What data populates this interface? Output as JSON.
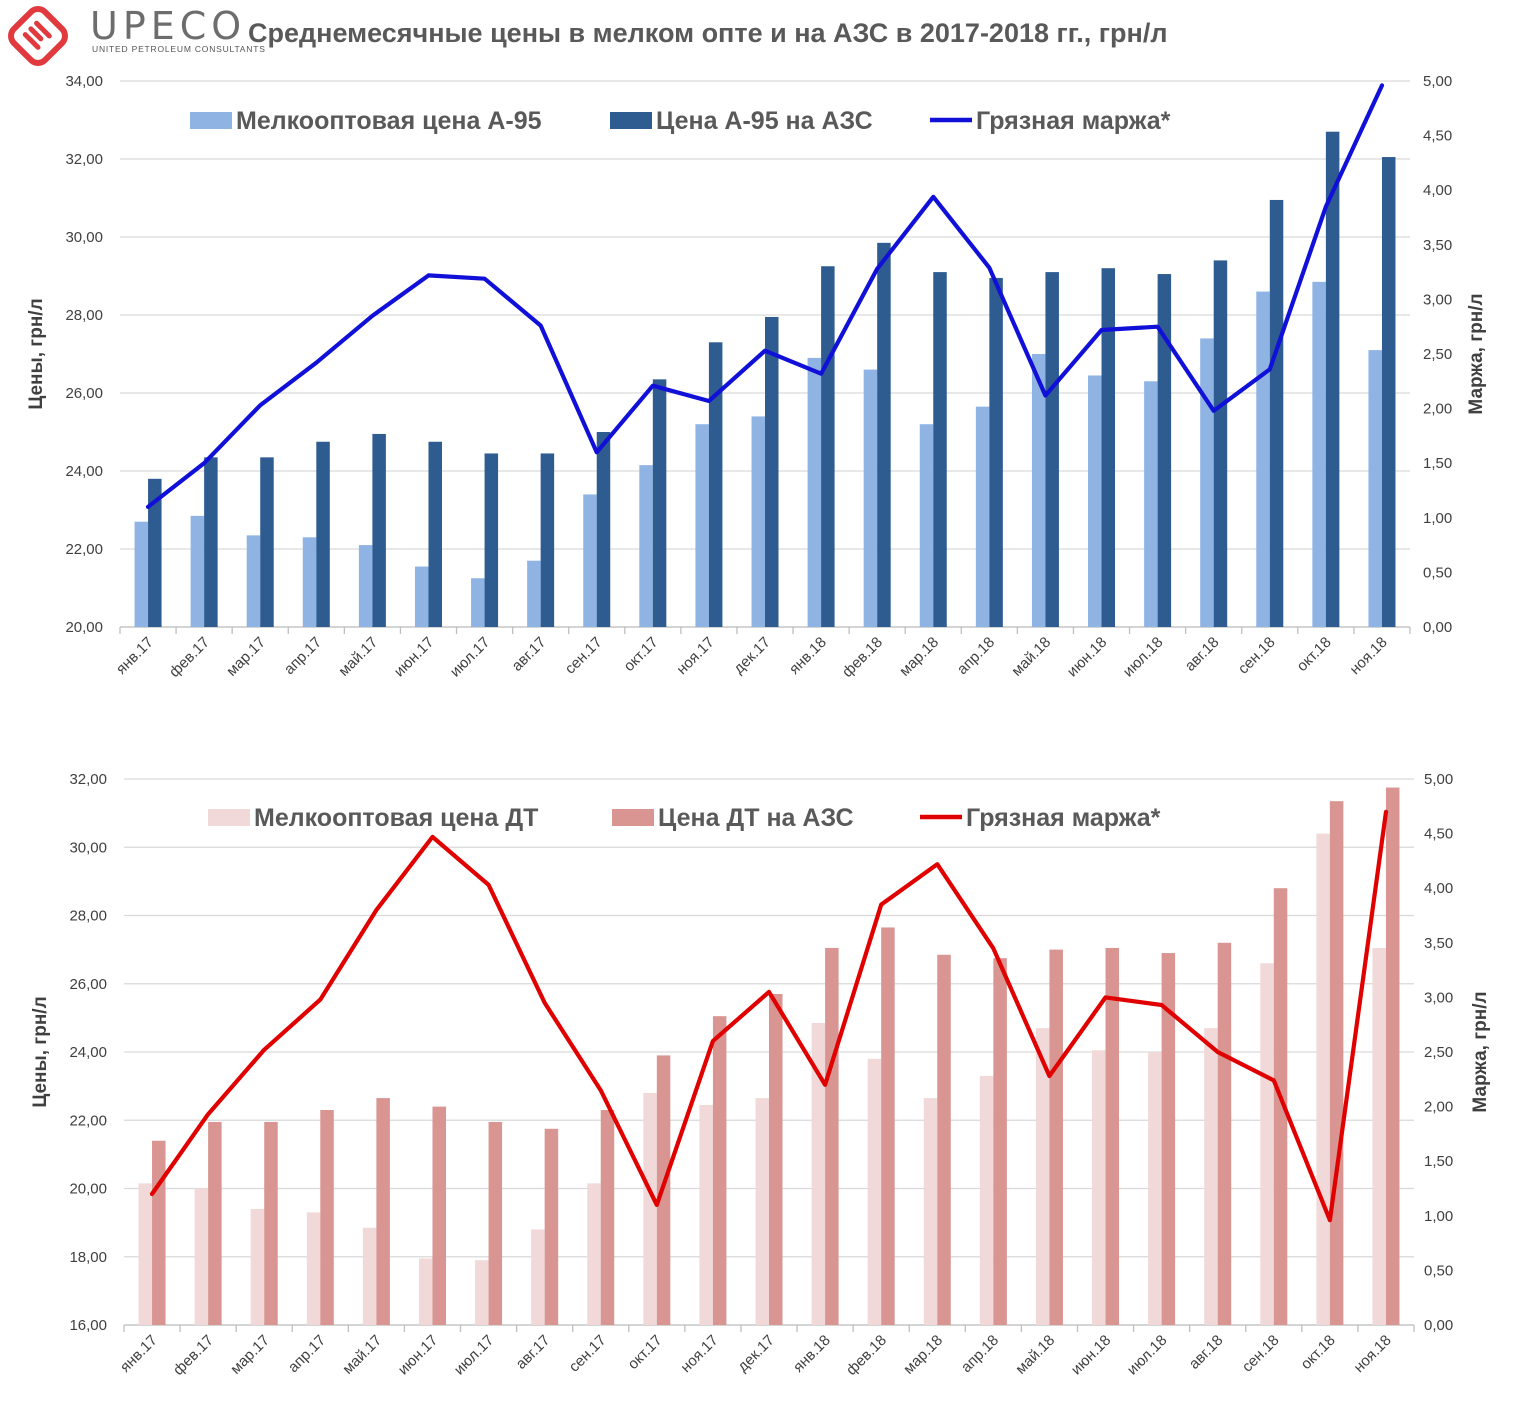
{
  "header": {
    "brand": "UPECO",
    "brand_sub": "UNITED PETROLEUM CONSULTANTS",
    "title": "Среднемесячные цены в мелком опте и на АЗС в 2017-2018 гг., грн/л"
  },
  "chart_data": [
    {
      "type": "bar",
      "categories": [
        "янв.17",
        "фев.17",
        "мар.17",
        "апр.17",
        "май.17",
        "июн.17",
        "июл.17",
        "авг.17",
        "сен.17",
        "окт.17",
        "ноя.17",
        "дек.17",
        "янв.18",
        "фев.18",
        "мар.18",
        "апр.18",
        "май.18",
        "июн.18",
        "июл.18",
        "авг.18",
        "сен.18",
        "окт.18",
        "ноя.18"
      ],
      "ylabel": "Цены, грн/л",
      "y2label": "Маржа, грн/л",
      "ylim": [
        20,
        34
      ],
      "y2lim": [
        0,
        5
      ],
      "yticks": [
        "20,00",
        "22,00",
        "24,00",
        "26,00",
        "28,00",
        "30,00",
        "32,00",
        "34,00"
      ],
      "y2ticks": [
        "0,00",
        "0,50",
        "1,00",
        "1,50",
        "2,00",
        "2,50",
        "3,00",
        "3,50",
        "4,00",
        "4,50",
        "5,00"
      ],
      "grid": true,
      "legend": "top",
      "series": [
        {
          "name": "Мелкооптовая цена А-95",
          "kind": "bar",
          "axis": "left",
          "color": "#8fb4e3",
          "values": [
            22.7,
            22.85,
            22.35,
            22.3,
            22.1,
            21.55,
            21.25,
            21.7,
            23.4,
            24.15,
            25.2,
            25.4,
            26.9,
            26.6,
            25.2,
            25.65,
            27.0,
            26.45,
            26.3,
            27.4,
            28.6,
            28.85,
            27.1
          ]
        },
        {
          "name": "Цена А-95 на АЗС",
          "kind": "bar",
          "axis": "left",
          "color": "#2e5c91",
          "values": [
            23.8,
            24.35,
            24.35,
            24.75,
            24.95,
            24.75,
            24.45,
            24.45,
            25.0,
            26.35,
            27.3,
            27.95,
            29.25,
            29.85,
            29.1,
            28.95,
            29.1,
            29.2,
            29.05,
            29.4,
            30.95,
            32.7,
            32.05
          ]
        },
        {
          "name": "Грязная маржа*",
          "kind": "line",
          "axis": "right",
          "color": "#1010d8",
          "values": [
            1.1,
            1.5,
            2.03,
            2.42,
            2.85,
            3.22,
            3.19,
            2.76,
            1.6,
            2.21,
            2.07,
            2.53,
            2.32,
            3.28,
            3.94,
            3.29,
            2.12,
            2.72,
            2.75,
            1.98,
            2.36,
            3.85,
            4.96
          ]
        }
      ]
    },
    {
      "type": "bar",
      "categories": [
        "янв.17",
        "фев.17",
        "мар.17",
        "апр.17",
        "май.17",
        "июн.17",
        "июл.17",
        "авг.17",
        "сен.17",
        "окт.17",
        "ноя.17",
        "дек.17",
        "янв.18",
        "фев.18",
        "мар.18",
        "апр.18",
        "май.18",
        "июн.18",
        "июл.18",
        "авг.18",
        "сен.18",
        "окт.18",
        "ноя.18"
      ],
      "ylabel": "Цены, грн/л",
      "y2label": "Маржа, грн/л",
      "ylim": [
        16,
        32
      ],
      "y2lim": [
        0,
        5
      ],
      "yticks": [
        "16,00",
        "18,00",
        "20,00",
        "22,00",
        "24,00",
        "26,00",
        "28,00",
        "30,00",
        "32,00"
      ],
      "y2ticks": [
        "0,00",
        "0,50",
        "1,00",
        "1,50",
        "2,00",
        "2,50",
        "3,00",
        "3,50",
        "4,00",
        "4,50",
        "5,00"
      ],
      "grid": true,
      "legend": "top",
      "series": [
        {
          "name": "Мелкооптовая цена ДТ",
          "kind": "bar",
          "axis": "left",
          "color": "#f2d9d9",
          "values": [
            20.15,
            20.0,
            19.4,
            19.3,
            18.85,
            17.95,
            17.9,
            18.8,
            20.15,
            22.8,
            22.45,
            22.65,
            24.85,
            23.8,
            22.65,
            23.3,
            24.7,
            24.05,
            24.0,
            24.7,
            26.6,
            30.4,
            27.05
          ]
        },
        {
          "name": "Цена ДТ на АЗС",
          "kind": "bar",
          "axis": "left",
          "color": "#d89592",
          "values": [
            21.4,
            21.95,
            21.95,
            22.3,
            22.65,
            22.4,
            21.95,
            21.75,
            22.3,
            23.9,
            25.05,
            25.7,
            27.05,
            27.65,
            26.85,
            26.75,
            27.0,
            27.05,
            26.9,
            27.2,
            28.8,
            31.35,
            31.75
          ]
        },
        {
          "name": "Грязная маржа*",
          "kind": "line",
          "axis": "right",
          "color": "#e00000",
          "values": [
            1.2,
            1.93,
            2.52,
            2.98,
            3.8,
            4.47,
            4.03,
            2.95,
            2.15,
            1.1,
            2.6,
            3.05,
            2.2,
            3.85,
            4.22,
            3.45,
            2.28,
            3.0,
            2.93,
            2.5,
            2.24,
            0.96,
            4.7
          ]
        }
      ]
    }
  ]
}
